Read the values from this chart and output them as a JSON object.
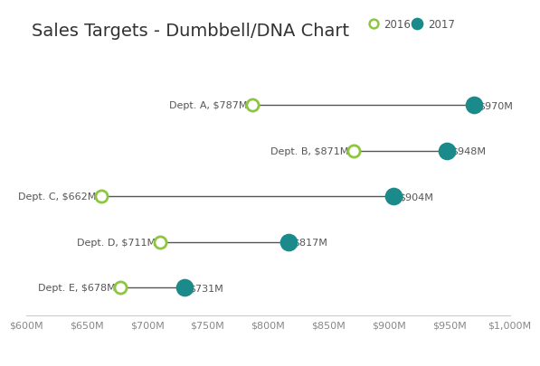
{
  "title": "Sales Targets - Dumbbell/DNA Chart",
  "departments": [
    "Dept. A",
    "Dept. B",
    "Dept. C",
    "Dept. D",
    "Dept. E"
  ],
  "values_2016": [
    787,
    871,
    662,
    711,
    678
  ],
  "values_2017": [
    970,
    948,
    904,
    817,
    731
  ],
  "labels_2016": [
    "$787M",
    "$871M",
    "$662M",
    "$711M",
    "$678M"
  ],
  "labels_2017": [
    "$970M",
    "$948M",
    "$904M",
    "$817M",
    "$731M"
  ],
  "color_2016": "#8dc63f",
  "color_2017": "#1a8a8a",
  "line_color": "#555555",
  "background_color": "#ffffff",
  "xmin": 600,
  "xmax": 1000,
  "xticks": [
    600,
    650,
    700,
    750,
    800,
    850,
    900,
    950,
    1000
  ],
  "xtick_labels": [
    "$600M",
    "$650M",
    "$700M",
    "$750M",
    "$800M",
    "$850M",
    "$900M",
    "$950M",
    "$1,000M"
  ],
  "marker_size_2016": 90,
  "marker_size_2017": 160,
  "title_fontsize": 14,
  "label_fontsize": 8,
  "tick_fontsize": 8,
  "legend_2016": "2016",
  "legend_2017": "2017"
}
